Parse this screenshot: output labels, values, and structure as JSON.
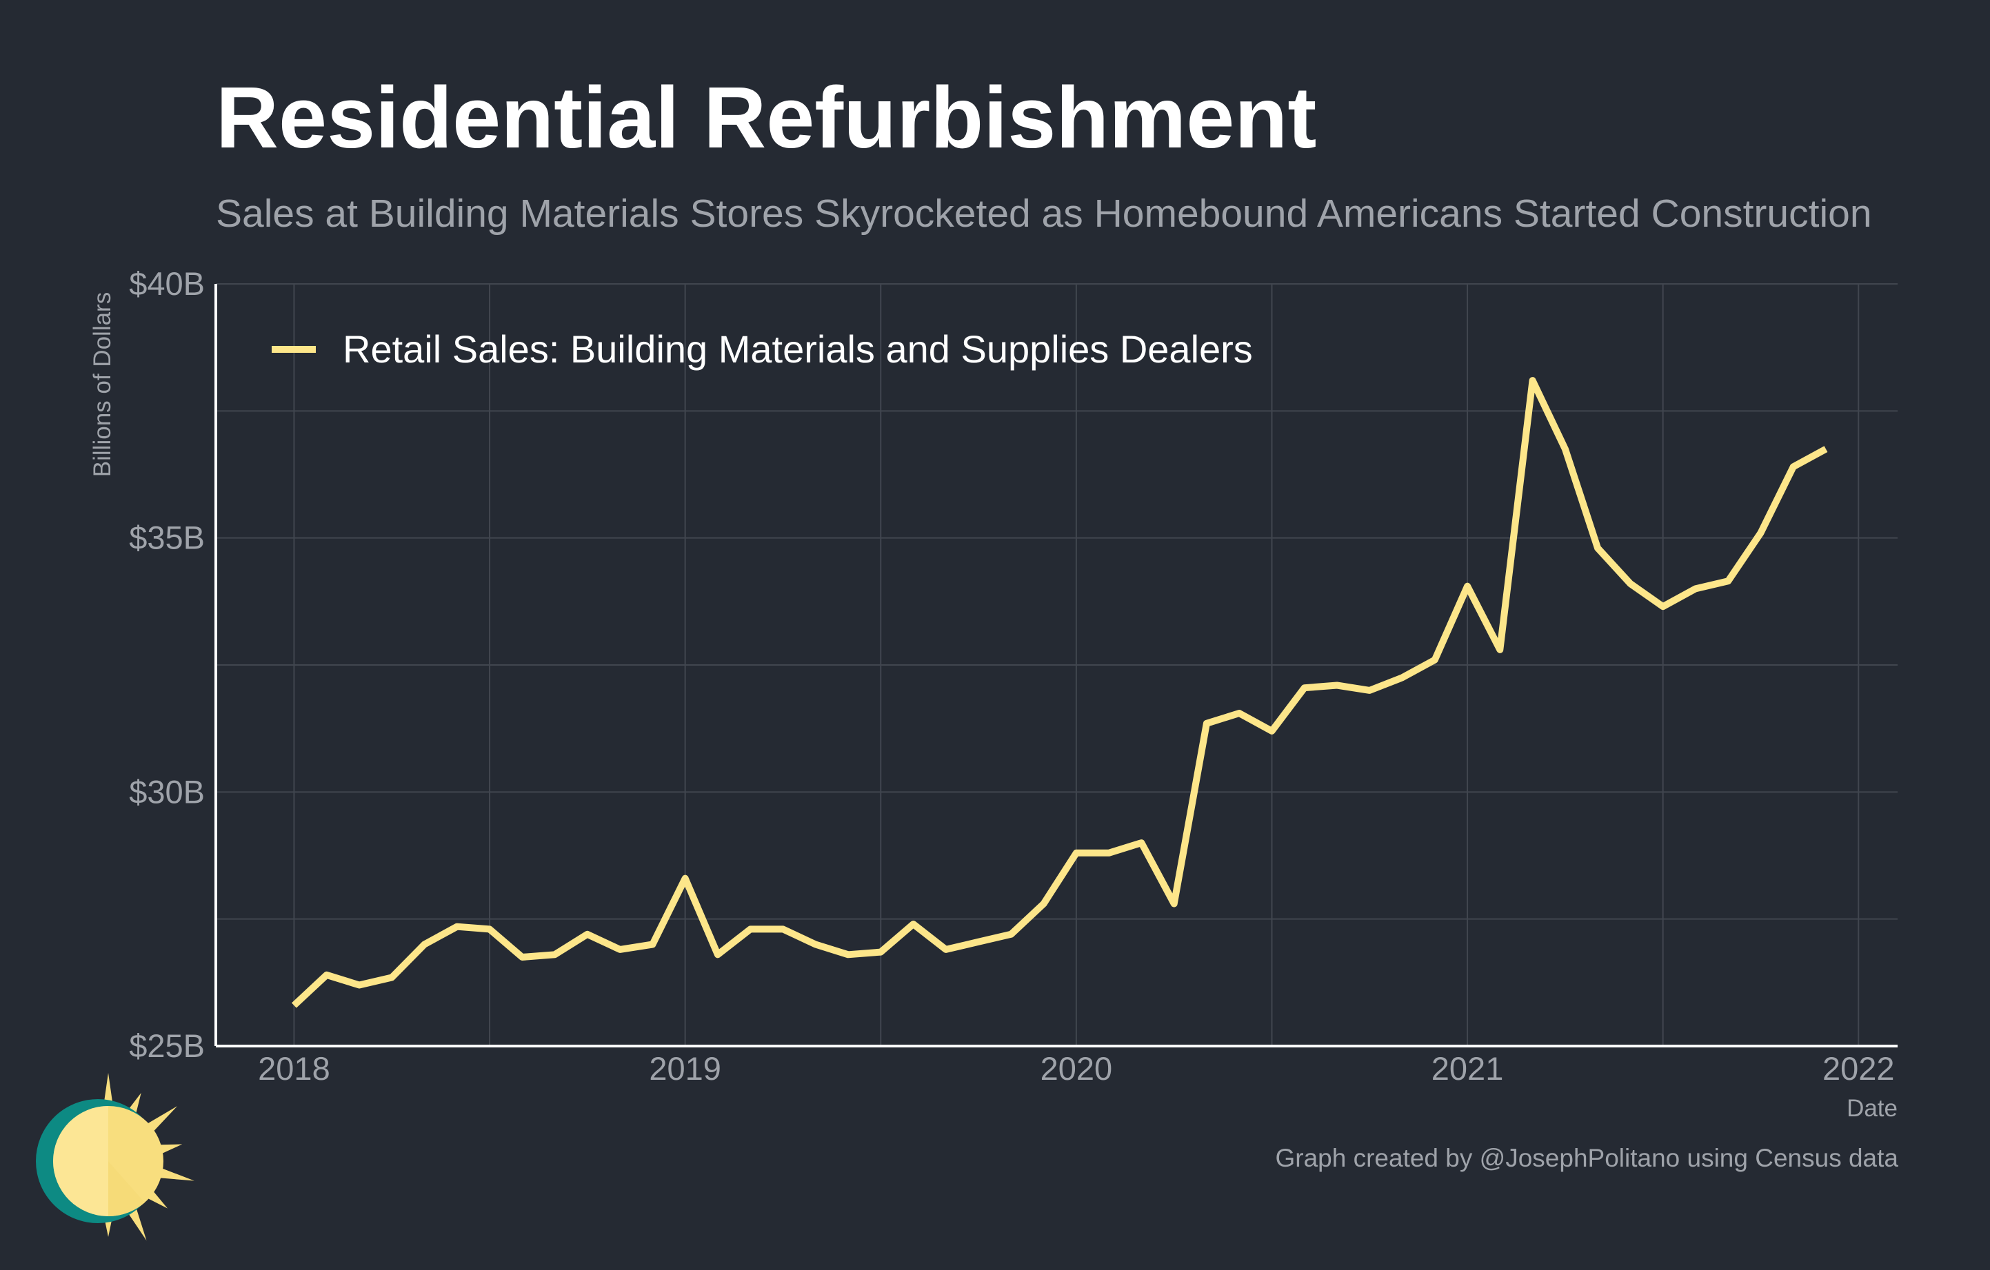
{
  "title": "Residential Refurbishment",
  "subtitle": "Sales at Building Materials Stores Skyrocketed as Homebound Americans Started Construction",
  "caption": "Graph created by @JosephPolitano using Census data",
  "logo_icon": "sun-logo-icon",
  "colors": {
    "background": "#252a33",
    "line": "#fde68a",
    "grid": "#41464f",
    "text_muted": "#9fa3aa",
    "axis": "#ffffff",
    "logo_teal": "#0d8a83",
    "logo_sun": "#f8de7e"
  },
  "chart_data": {
    "type": "line",
    "title": "Residential Refurbishment",
    "subtitle": "Sales at Building Materials Stores Skyrocketed as Homebound Americans Started Construction",
    "xlabel": "Date",
    "ylabel": "Billions of Dollars",
    "xlim": [
      2017.8,
      2022.1
    ],
    "ylim": [
      25,
      40
    ],
    "xticks": [
      {
        "value": 2018,
        "label": "2018"
      },
      {
        "value": 2019,
        "label": "2019"
      },
      {
        "value": 2020,
        "label": "2020"
      },
      {
        "value": 2021,
        "label": "2021"
      },
      {
        "value": 2022,
        "label": "2022"
      }
    ],
    "yticks": [
      {
        "value": 25,
        "label": "$25B"
      },
      {
        "value": 30,
        "label": "$30B"
      },
      {
        "value": 35,
        "label": "$35B"
      },
      {
        "value": 40,
        "label": "$40B"
      }
    ],
    "grid": true,
    "legend_position": "top-left",
    "series": [
      {
        "name": "Retail Sales: Building Materials and Supplies Dealers",
        "color": "#fde68a",
        "x": [
          "2018-01",
          "2018-02",
          "2018-03",
          "2018-04",
          "2018-05",
          "2018-06",
          "2018-07",
          "2018-08",
          "2018-09",
          "2018-10",
          "2018-11",
          "2018-12",
          "2019-01",
          "2019-02",
          "2019-03",
          "2019-04",
          "2019-05",
          "2019-06",
          "2019-07",
          "2019-08",
          "2019-09",
          "2019-10",
          "2019-11",
          "2019-12",
          "2020-01",
          "2020-02",
          "2020-03",
          "2020-04",
          "2020-05",
          "2020-06",
          "2020-07",
          "2020-08",
          "2020-09",
          "2020-10",
          "2020-11",
          "2020-12",
          "2021-01",
          "2021-02",
          "2021-03",
          "2021-04",
          "2021-05",
          "2021-06",
          "2021-07",
          "2021-08",
          "2021-09",
          "2021-10",
          "2021-11",
          "2021-12"
        ],
        "values": [
          25.8,
          26.4,
          26.2,
          26.35,
          27.0,
          27.35,
          27.3,
          26.75,
          26.8,
          27.2,
          26.9,
          27.0,
          28.3,
          26.8,
          27.3,
          27.3,
          27.0,
          26.8,
          26.85,
          27.4,
          26.9,
          27.05,
          27.2,
          27.8,
          28.8,
          28.8,
          29.0,
          27.8,
          31.35,
          31.55,
          31.2,
          32.05,
          32.1,
          32.0,
          32.25,
          32.6,
          34.05,
          32.8,
          38.1,
          36.75,
          34.8,
          34.1,
          33.65,
          34.0,
          34.15,
          35.1,
          36.4,
          36.75
        ]
      }
    ]
  }
}
